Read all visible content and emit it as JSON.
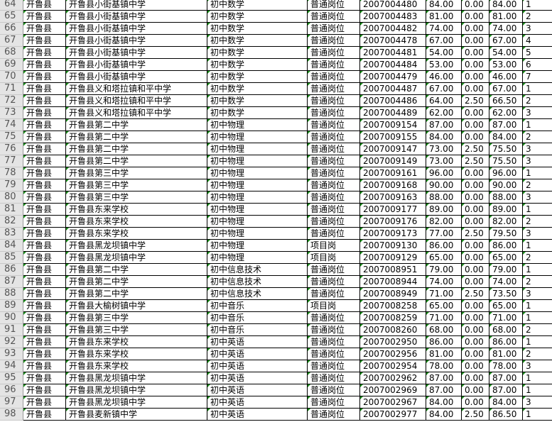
{
  "accent": {
    "row_header_bg": "#e4e4e4",
    "text_indicator": "#1a8c1a"
  },
  "rows": [
    [
      "64",
      "开鲁县",
      "开鲁县小街基镇中学",
      "初中数学",
      "普通岗位",
      "2007004480",
      "84.00",
      "0.00",
      "84.00",
      "1"
    ],
    [
      "65",
      "开鲁县",
      "开鲁县小街基镇中学",
      "初中数学",
      "普通岗位",
      "2007004483",
      "81.00",
      "0.00",
      "81.00",
      "2"
    ],
    [
      "66",
      "开鲁县",
      "开鲁县小街基镇中学",
      "初中数学",
      "普通岗位",
      "2007004482",
      "74.00",
      "0.00",
      "74.00",
      "3"
    ],
    [
      "67",
      "开鲁县",
      "开鲁县小街基镇中学",
      "初中数学",
      "普通岗位",
      "2007004478",
      "67.00",
      "0.00",
      "67.00",
      "4"
    ],
    [
      "68",
      "开鲁县",
      "开鲁县小街基镇中学",
      "初中数学",
      "普通岗位",
      "2007004481",
      "54.00",
      "0.00",
      "54.00",
      "5"
    ],
    [
      "69",
      "开鲁县",
      "开鲁县小街基镇中学",
      "初中数学",
      "普通岗位",
      "2007004484",
      "53.00",
      "0.00",
      "53.00",
      "6"
    ],
    [
      "70",
      "开鲁县",
      "开鲁县小街基镇中学",
      "初中数学",
      "普通岗位",
      "2007004479",
      "46.00",
      "0.00",
      "46.00",
      "7"
    ],
    [
      "71",
      "开鲁县",
      "开鲁县义和塔拉镇和平中学",
      "初中数学",
      "普通岗位",
      "2007004487",
      "67.00",
      "0.00",
      "67.00",
      "1"
    ],
    [
      "72",
      "开鲁县",
      "开鲁县义和塔拉镇和平中学",
      "初中数学",
      "普通岗位",
      "2007004486",
      "64.00",
      "2.50",
      "66.50",
      "2"
    ],
    [
      "73",
      "开鲁县",
      "开鲁县义和塔拉镇和平中学",
      "初中数学",
      "普通岗位",
      "2007004489",
      "62.00",
      "0.00",
      "62.00",
      "3"
    ],
    [
      "74",
      "开鲁县",
      "开鲁县第二中学",
      "初中物理",
      "普通岗位",
      "2007009154",
      "87.00",
      "0.00",
      "87.00",
      "1"
    ],
    [
      "75",
      "开鲁县",
      "开鲁县第二中学",
      "初中物理",
      "普通岗位",
      "2007009155",
      "84.00",
      "0.00",
      "84.00",
      "2"
    ],
    [
      "76",
      "开鲁县",
      "开鲁县第二中学",
      "初中物理",
      "普通岗位",
      "2007009147",
      "73.00",
      "2.50",
      "75.50",
      "3"
    ],
    [
      "77",
      "开鲁县",
      "开鲁县第二中学",
      "初中物理",
      "普通岗位",
      "2007009149",
      "73.00",
      "2.50",
      "75.50",
      "3"
    ],
    [
      "78",
      "开鲁县",
      "开鲁县第三中学",
      "初中物理",
      "普通岗位",
      "2007009161",
      "96.00",
      "0.00",
      "96.00",
      "1"
    ],
    [
      "79",
      "开鲁县",
      "开鲁县第三中学",
      "初中物理",
      "普通岗位",
      "2007009168",
      "90.00",
      "0.00",
      "90.00",
      "2"
    ],
    [
      "80",
      "开鲁县",
      "开鲁县第三中学",
      "初中物理",
      "普通岗位",
      "2007009163",
      "88.00",
      "0.00",
      "88.00",
      "3"
    ],
    [
      "81",
      "开鲁县",
      "开鲁县东来学校",
      "初中物理",
      "普通岗位",
      "2007009177",
      "89.00",
      "0.00",
      "89.00",
      "1"
    ],
    [
      "82",
      "开鲁县",
      "开鲁县东来学校",
      "初中物理",
      "普通岗位",
      "2007009176",
      "82.00",
      "0.00",
      "82.00",
      "2"
    ],
    [
      "83",
      "开鲁县",
      "开鲁县东来学校",
      "初中物理",
      "普通岗位",
      "2007009173",
      "77.00",
      "2.50",
      "79.50",
      "3"
    ],
    [
      "84",
      "开鲁县",
      "开鲁县黑龙坝镇中学",
      "初中物理",
      "项目岗",
      "2007009130",
      "86.00",
      "0.00",
      "86.00",
      "1"
    ],
    [
      "85",
      "开鲁县",
      "开鲁县黑龙坝镇中学",
      "初中物理",
      "项目岗",
      "2007009129",
      "65.00",
      "0.00",
      "65.00",
      "2"
    ],
    [
      "86",
      "开鲁县",
      "开鲁县第二中学",
      "初中信息技术",
      "普通岗位",
      "2007008951",
      "79.00",
      "0.00",
      "79.00",
      "1"
    ],
    [
      "87",
      "开鲁县",
      "开鲁县第二中学",
      "初中信息技术",
      "普通岗位",
      "2007008944",
      "74.00",
      "0.00",
      "74.00",
      "2"
    ],
    [
      "88",
      "开鲁县",
      "开鲁县第二中学",
      "初中信息技术",
      "普通岗位",
      "2007008949",
      "71.00",
      "2.50",
      "73.50",
      "3"
    ],
    [
      "89",
      "开鲁县",
      "开鲁县大榆树镇中学",
      "初中音乐",
      "项目岗",
      "2007008258",
      "65.00",
      "0.00",
      "65.00",
      "1"
    ],
    [
      "90",
      "开鲁县",
      "开鲁县第三中学",
      "初中音乐",
      "普通岗位",
      "2007008259",
      "71.00",
      "0.00",
      "71.00",
      "1"
    ],
    [
      "91",
      "开鲁县",
      "开鲁县第三中学",
      "初中音乐",
      "普通岗位",
      "2007008260",
      "68.00",
      "0.00",
      "68.00",
      "2"
    ],
    [
      "92",
      "开鲁县",
      "开鲁县东来学校",
      "初中英语",
      "普通岗位",
      "2007002950",
      "86.00",
      "0.00",
      "86.00",
      "1"
    ],
    [
      "93",
      "开鲁县",
      "开鲁县东来学校",
      "初中英语",
      "普通岗位",
      "2007002956",
      "81.00",
      "0.00",
      "81.00",
      "2"
    ],
    [
      "94",
      "开鲁县",
      "开鲁县东来学校",
      "初中英语",
      "普通岗位",
      "2007002954",
      "78.00",
      "0.00",
      "78.00",
      "3"
    ],
    [
      "95",
      "开鲁县",
      "开鲁县黑龙坝镇中学",
      "初中英语",
      "普通岗位",
      "2007002962",
      "87.00",
      "0.00",
      "87.00",
      "1"
    ],
    [
      "96",
      "开鲁县",
      "开鲁县黑龙坝镇中学",
      "初中英语",
      "普通岗位",
      "2007002969",
      "87.00",
      "0.00",
      "87.00",
      "1"
    ],
    [
      "97",
      "开鲁县",
      "开鲁县黑龙坝镇中学",
      "初中英语",
      "普通岗位",
      "2007002967",
      "84.00",
      "0.00",
      "84.00",
      "3"
    ],
    [
      "98",
      "开鲁县",
      "开鲁县麦新镇中学",
      "初中英语",
      "普通岗位",
      "2007002977",
      "84.00",
      "2.50",
      "86.50",
      "1"
    ]
  ]
}
